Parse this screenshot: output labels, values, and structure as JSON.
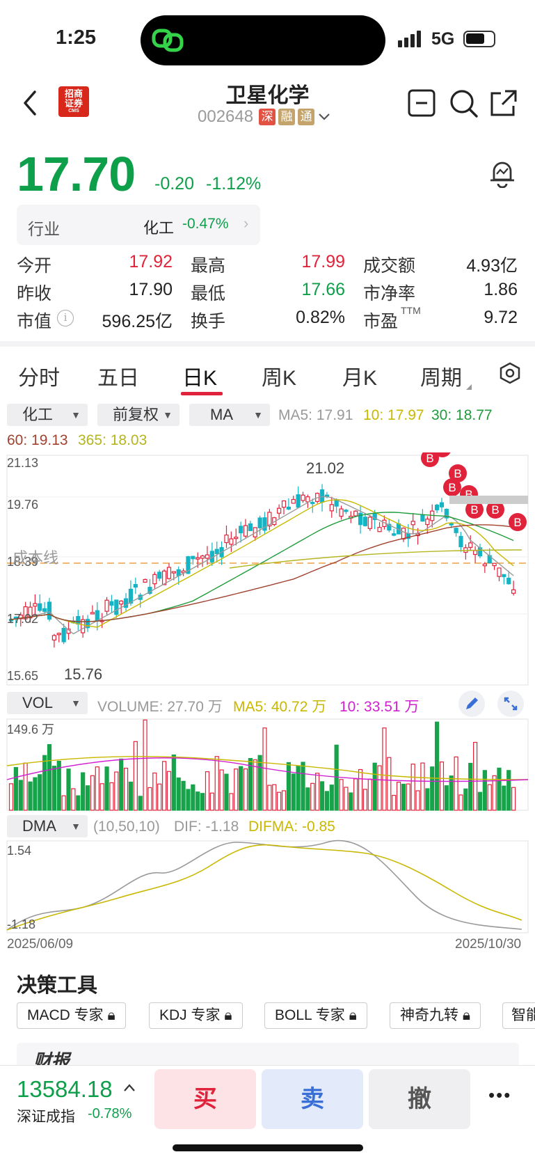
{
  "status_bar": {
    "time": "1:25",
    "network": "5G"
  },
  "header": {
    "stock_name": "卫星化学",
    "stock_code": "002648",
    "badges": [
      {
        "text": "深",
        "color": "#e25243"
      },
      {
        "text": "融",
        "color": "#c4a46a"
      },
      {
        "text": "通",
        "color": "#c4a46a"
      }
    ],
    "logo_text": "招商证券",
    "logo_sub": "CMS",
    "icons": [
      "back-icon",
      "minus-box-icon",
      "search-icon",
      "share-icon"
    ]
  },
  "quote": {
    "price": "17.70",
    "change": "-0.20",
    "change_pct": "-1.12%",
    "industry_label": "行业",
    "industry_name": "化工",
    "industry_change": "-0.47%"
  },
  "stats": [
    {
      "label": "今开",
      "value": "17.92",
      "color": "#e0233a"
    },
    {
      "label": "最高",
      "value": "17.99",
      "color": "#e0233a"
    },
    {
      "label": "成交额",
      "value": "4.93亿",
      "color": "#222"
    },
    {
      "label": "昨收",
      "value": "17.90",
      "color": "#222"
    },
    {
      "label": "最低",
      "value": "17.66",
      "color": "#0e9f4b"
    },
    {
      "label": "市净率",
      "value": "1.86",
      "color": "#222"
    },
    {
      "label": "市值",
      "value": "596.25亿",
      "color": "#222"
    },
    {
      "label": "换手",
      "value": "0.82%",
      "color": "#222"
    },
    {
      "label": "市盈",
      "value": "9.72",
      "color": "#222",
      "sup": "TTM"
    }
  ],
  "tabs": [
    "分时",
    "五日",
    "日K",
    "周K",
    "月K",
    "周期"
  ],
  "active_tab": "日K",
  "selectors": {
    "index": "化工",
    "adjust": "前复权",
    "indicator": "MA"
  },
  "ma_legend": {
    "ma5": "MA5: 17.91",
    "ma10": "10: 17.97",
    "ma30": "30: 18.77",
    "ma60": "60: 19.13",
    "ma365": "365: 18.03",
    "colors": {
      "ma5": "#999999",
      "ma10": "#c9b800",
      "ma30": "#1e9c3a",
      "ma60": "#a0422e",
      "ma365": "#b5b51e"
    }
  },
  "kline": {
    "y_max_label": "21.13",
    "y_mid_label": "19.76",
    "y_cost_label": "18.39",
    "y_low_label": "17.02",
    "y_min_label": "15.65",
    "high_annot": "21.02",
    "low_annot": "15.76",
    "cost_line_label": "成本线",
    "buy_marker": "B"
  },
  "volume": {
    "selector": "VOL",
    "legend_volume": "VOLUME: 27.70 万",
    "legend_ma5": "MA5: 40.72 万",
    "legend_ma10": "10: 33.51 万",
    "max_label": "149.6 万"
  },
  "dma": {
    "selector": "DMA",
    "params": "(10,50,10)",
    "dif": "DIF: -1.18",
    "difma": "DIFMA: -0.85",
    "top_label": "1.54",
    "bottom_label": "-1.18"
  },
  "dates": {
    "start": "2025/06/09",
    "end": "2025/10/30"
  },
  "tools": {
    "title": "决策工具",
    "items": [
      "MACD 专家",
      "KDJ 专家",
      "BOLL 专家",
      "神奇九转",
      "智能"
    ]
  },
  "report_text": "财报",
  "bottom": {
    "index_value": "13584.18",
    "index_name": "深证成指",
    "index_change": "-0.78%",
    "buy": "买",
    "sell": "卖",
    "cancel": "撤",
    "more": "•••"
  }
}
